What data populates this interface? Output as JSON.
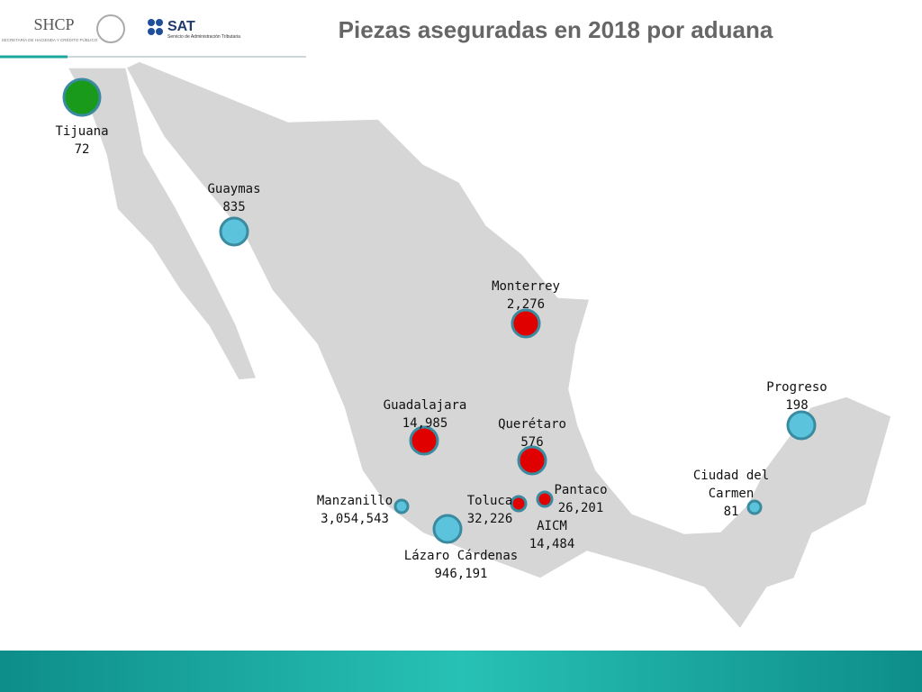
{
  "header": {
    "title": "Piezas aseguradas en 2018 por aduana",
    "logo_shcp": "SHCP",
    "logo_shcp_sub": "SECRETARÍA DE HACIENDA Y CRÉDITO PÚBLICO",
    "logo_sat": "SAT",
    "logo_sat_sub": "Servicio de Administración Tributaria"
  },
  "markers": [
    {
      "name": "Tijuana",
      "value": "72",
      "color": "#1a9a1a"
    },
    {
      "name": "Guaymas",
      "value": "835",
      "color": "#5bc3dc"
    },
    {
      "name": "Monterrey",
      "value": "2,276",
      "color": "#e00000"
    },
    {
      "name": "Progreso",
      "value": "198",
      "color": "#5bc3dc"
    },
    {
      "name": "Guadalajara",
      "value": "14,985",
      "color": "#e00000"
    },
    {
      "name": "Querétaro",
      "value": "576",
      "color": "#e00000"
    },
    {
      "name": "Ciudad del Carmen",
      "value": "81",
      "color": "#5bc3dc"
    },
    {
      "name": "Manzanillo",
      "value": "3,054,543",
      "color": "#5bc3dc"
    },
    {
      "name": "Toluca",
      "value": "32,226",
      "color": "#e00000"
    },
    {
      "name": "Pantaco",
      "value": "26,201",
      "color": "#e00000"
    },
    {
      "name": "AICM",
      "value": "14,484",
      "color": "#e00000"
    },
    {
      "name": "Lázaro Cárdenas",
      "value": "946,191",
      "color": "#5bc3dc"
    }
  ]
}
